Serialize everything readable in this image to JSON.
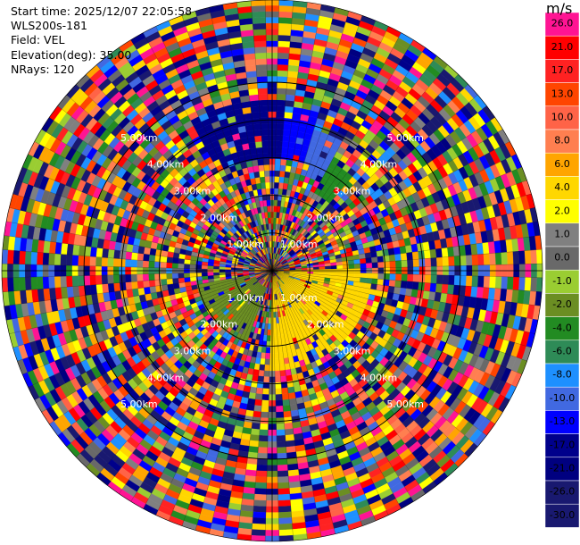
{
  "info": {
    "start_time": "Start time: 2025/12/07 22:05:58",
    "instrument": "WLS200s-181",
    "field": "Field: VEL",
    "elevation": "Elevation(deg): 35.00",
    "nrays": "NRays: 120"
  },
  "colorbar": {
    "unit": "m/s",
    "levels": [
      {
        "label": "26.0",
        "color": "#ff1493"
      },
      {
        "label": "21.0",
        "color": "#ff0000"
      },
      {
        "label": "17.0",
        "color": "#ff2222"
      },
      {
        "label": "13.0",
        "color": "#ff4500"
      },
      {
        "label": "10.0",
        "color": "#ff6347"
      },
      {
        "label": "8.0",
        "color": "#ff7f50"
      },
      {
        "label": "6.0",
        "color": "#ffa500"
      },
      {
        "label": "4.0",
        "color": "#ffd700"
      },
      {
        "label": "2.0",
        "color": "#ffff00"
      },
      {
        "label": "1.0",
        "color": "#808080"
      },
      {
        "label": "0.0",
        "color": "#696969"
      },
      {
        "label": "-1.0",
        "color": "#9acd32"
      },
      {
        "label": "-2.0",
        "color": "#6b8e23"
      },
      {
        "label": "-4.0",
        "color": "#228b22"
      },
      {
        "label": "-6.0",
        "color": "#2e8b57"
      },
      {
        "label": "-8.0",
        "color": "#1e90ff"
      },
      {
        "label": "-10.0",
        "color": "#4169e1"
      },
      {
        "label": "-13.0",
        "color": "#0000ff"
      },
      {
        "label": "-17.0",
        "color": "#00008b"
      },
      {
        "label": "-21.0",
        "color": "#000080"
      },
      {
        "label": "-26.0",
        "color": "#191970"
      },
      {
        "label": "-30.0",
        "color": "#191970"
      }
    ]
  },
  "chart_data": {
    "type": "heatmap",
    "projection": "polar (PPI)",
    "nrays": 120,
    "range_rings": [
      {
        "label": "1.00km"
      },
      {
        "label": "2.00km"
      },
      {
        "label": "3.00km"
      },
      {
        "label": "4.00km"
      },
      {
        "label": "5.00km"
      }
    ],
    "value_range": [
      -30.0,
      26.0
    ],
    "features": [
      {
        "sector_deg": [
          -28,
          5
        ],
        "range_km": [
          3.0,
          4.6
        ],
        "value": -17.0
      },
      {
        "sector_deg": [
          5,
          16
        ],
        "range_km": [
          3.0,
          4.4
        ],
        "value": -13.0
      },
      {
        "sector_deg": [
          16,
          28
        ],
        "range_km": [
          2.6,
          3.9
        ],
        "value": -10.0
      },
      {
        "sector_deg": [
          28,
          40
        ],
        "range_km": [
          2.3,
          3.3
        ],
        "value": -4.0
      },
      {
        "sector_deg": [
          90,
          180
        ],
        "range_km": [
          0.2,
          2.6
        ],
        "value": 4.0
      },
      {
        "sector_deg": [
          200,
          260
        ],
        "range_km": [
          0.5,
          2.0
        ],
        "value": -2.0
      }
    ]
  }
}
